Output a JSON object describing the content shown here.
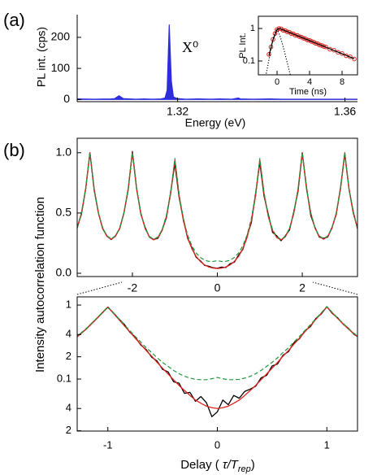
{
  "chart_data": [
    {
      "type": "area",
      "panel_label": "(a)",
      "xlabel": "Energy (eV)",
      "ylabel": "PL int. (cps)",
      "annotation": "X⁰",
      "xlim": [
        1.296,
        1.363
      ],
      "xticks": [
        1.32,
        1.36
      ],
      "ylim": [
        -7,
        273
      ],
      "yticks": [
        0,
        100,
        200
      ],
      "x": [
        1.296,
        1.3,
        1.304,
        1.305,
        1.306,
        1.307,
        1.31,
        1.312,
        1.314,
        1.316,
        1.317,
        1.3175,
        1.318,
        1.3185,
        1.319,
        1.32,
        1.322,
        1.325,
        1.328,
        1.33,
        1.333,
        1.3345,
        1.335,
        1.338,
        1.342,
        1.345,
        1.35,
        1.355,
        1.36,
        1.363
      ],
      "series": [
        {
          "color": "#2d2ddc",
          "values": [
            2,
            1,
            2,
            3,
            12,
            3,
            1,
            2,
            1,
            2,
            5,
            30,
            240,
            60,
            8,
            3,
            1,
            2,
            1,
            2,
            1,
            5,
            2,
            1,
            2,
            1,
            1,
            1,
            1,
            1
          ]
        }
      ]
    },
    {
      "type": "line",
      "log_y": true,
      "xlabel": "Time (ns)",
      "ylabel": "PL Int.",
      "xlim": [
        -2.3,
        9.9
      ],
      "xticks": [
        0,
        4,
        8
      ],
      "ylim": [
        0.0376,
        2.37
      ],
      "yticks": [
        1,
        0.1
      ],
      "series": [
        {
          "style": "markers",
          "color": "#d8261f",
          "x": [
            -1,
            -0.75,
            -0.5,
            -0.25,
            0,
            0.25,
            0.5,
            0.75,
            1,
            1.25,
            1.5,
            1.75,
            2,
            2.25,
            2.5,
            2.75,
            3,
            3.25,
            3.5,
            3.75,
            4,
            4.25,
            4.5,
            4.75,
            5,
            5.25,
            5.5,
            5.75,
            6,
            6.5,
            7,
            7.5,
            8,
            8.5,
            9,
            9.5
          ],
          "values": [
            0.16,
            0.27,
            0.46,
            0.7,
            0.93,
            1.0,
            0.97,
            0.88,
            0.86,
            0.79,
            0.77,
            0.7,
            0.68,
            0.62,
            0.61,
            0.56,
            0.54,
            0.5,
            0.48,
            0.44,
            0.43,
            0.4,
            0.38,
            0.35,
            0.34,
            0.31,
            0.3,
            0.28,
            0.27,
            0.23,
            0.215,
            0.185,
            0.17,
            0.145,
            0.135,
            0.115
          ]
        },
        {
          "style": "solid",
          "color": "#000000",
          "x": [
            -1,
            -0.5,
            0,
            0.3,
            1,
            2,
            3,
            4,
            5,
            6,
            7,
            8,
            9,
            9.5
          ],
          "values": [
            0.15,
            0.45,
            0.92,
            1.0,
            0.85,
            0.673,
            0.534,
            0.423,
            0.335,
            0.266,
            0.211,
            0.167,
            0.132,
            0.118
          ]
        },
        {
          "style": "dotted",
          "color": "#000000",
          "x": [
            -1.6,
            -1.2,
            -0.8,
            -0.4,
            0,
            0.4,
            0.8,
            1.2,
            1.6,
            2.0
          ],
          "values": [
            0.02,
            0.06,
            0.2,
            0.6,
            1.0,
            0.55,
            0.25,
            0.1,
            0.04,
            0.018
          ]
        }
      ]
    },
    {
      "type": "line",
      "panel_label": "(b)",
      "ylabel": "Intensity autocorrelation function",
      "xlim": [
        -3.3,
        3.3
      ],
      "xticks": [
        -2,
        0,
        2
      ],
      "ylim": [
        -0.027,
        1.12
      ],
      "yticks": [
        {
          "value": 0,
          "label": "0.0"
        },
        0.5,
        {
          "value": 1,
          "label": "1.0"
        }
      ],
      "x": [
        -3.3,
        -3.2,
        -3.1,
        -3.0,
        -2.9,
        -2.8,
        -2.7,
        -2.6,
        -2.5,
        -2.4,
        -2.3,
        -2.2,
        -2.1,
        -2.0,
        -1.9,
        -1.8,
        -1.7,
        -1.6,
        -1.5,
        -1.4,
        -1.3,
        -1.2,
        -1.1,
        -1.0,
        -0.9,
        -0.8,
        -0.7,
        -0.6,
        -0.5,
        -0.4,
        -0.3,
        -0.2,
        -0.1,
        0,
        0.1,
        0.2,
        0.3,
        0.4,
        0.5,
        0.6,
        0.7,
        0.8,
        0.9,
        1.0,
        1.1,
        1.2,
        1.3,
        1.4,
        1.5,
        1.6,
        1.7,
        1.8,
        1.9,
        2.0,
        2.1,
        2.2,
        2.3,
        2.4,
        2.5,
        2.6,
        2.7,
        2.8,
        2.9,
        3.0,
        3.1,
        3.2,
        3.3
      ],
      "series": [
        {
          "style": "solid",
          "color": "#000000",
          "values": [
            0.38,
            0.49,
            0.7,
            1.0,
            0.69,
            0.5,
            0.37,
            0.31,
            0.28,
            0.31,
            0.37,
            0.5,
            0.69,
            1.01,
            0.7,
            0.49,
            0.38,
            0.3,
            0.28,
            0.29,
            0.36,
            0.46,
            0.67,
            0.91,
            0.63,
            0.45,
            0.29,
            0.212,
            0.133,
            0.104,
            0.066,
            0.058,
            0.046,
            0.042,
            0.051,
            0.048,
            0.079,
            0.092,
            0.151,
            0.197,
            0.31,
            0.42,
            0.66,
            0.92,
            0.64,
            0.49,
            0.34,
            0.31,
            0.27,
            0.31,
            0.36,
            0.51,
            0.68,
            1.0,
            0.71,
            0.48,
            0.38,
            0.3,
            0.29,
            0.3,
            0.38,
            0.49,
            0.71,
            0.99,
            0.7,
            0.51,
            0.37
          ]
        },
        {
          "style": "solid",
          "color": "#e0201b",
          "values": [
            0.374,
            0.498,
            0.698,
            1.001,
            0.698,
            0.498,
            0.374,
            0.306,
            0.283,
            0.306,
            0.373,
            0.498,
            0.698,
            1.0,
            0.697,
            0.496,
            0.371,
            0.302,
            0.277,
            0.296,
            0.355,
            0.47,
            0.657,
            0.941,
            0.641,
            0.436,
            0.297,
            0.204,
            0.14,
            0.098,
            0.07,
            0.052,
            0.043,
            0.04,
            0.043,
            0.052,
            0.07,
            0.098,
            0.14,
            0.204,
            0.297,
            0.436,
            0.641,
            0.941,
            0.657,
            0.47,
            0.355,
            0.296,
            0.277,
            0.302,
            0.371,
            0.496,
            0.697,
            1.0,
            0.698,
            0.498,
            0.373,
            0.306,
            0.283,
            0.306,
            0.374,
            0.498,
            0.698,
            1.001,
            0.698,
            0.498,
            0.374
          ]
        },
        {
          "style": "dashed",
          "color": "#1a9a3a",
          "values": [
            0.378,
            0.502,
            0.702,
            1.005,
            0.702,
            0.502,
            0.378,
            0.31,
            0.287,
            0.31,
            0.377,
            0.502,
            0.702,
            1.004,
            0.7,
            0.5,
            0.375,
            0.306,
            0.282,
            0.302,
            0.363,
            0.479,
            0.667,
            0.953,
            0.656,
            0.453,
            0.317,
            0.228,
            0.168,
            0.131,
            0.109,
            0.099,
            0.098,
            0.105,
            0.098,
            0.099,
            0.109,
            0.131,
            0.168,
            0.228,
            0.317,
            0.453,
            0.656,
            0.953,
            0.667,
            0.479,
            0.363,
            0.302,
            0.282,
            0.306,
            0.375,
            0.5,
            0.7,
            1.004,
            0.702,
            0.502,
            0.377,
            0.31,
            0.287,
            0.31,
            0.378,
            0.502,
            0.702,
            1.005,
            0.702,
            0.502,
            0.378
          ]
        }
      ]
    },
    {
      "type": "line",
      "log_y": true,
      "xlabel": {
        "text": "Delay (",
        "var": "τ/T",
        "sub": "rep",
        "end": ")"
      },
      "xlim": [
        -1.28,
        1.28
      ],
      "xticks": [
        -1,
        0,
        1
      ],
      "ylim": [
        0.0198,
        1.29
      ],
      "yticks": [
        1,
        {
          "value": 0.4,
          "label": "4"
        },
        {
          "value": 0.2,
          "label": "2"
        },
        0.1,
        {
          "value": 0.04,
          "label": "4"
        },
        {
          "value": 0.02,
          "label": "2"
        }
      ],
      "x": [
        -1.3,
        -1.25,
        -1.2,
        -1.15,
        -1.1,
        -1.05,
        -1.0,
        -0.95,
        -0.9,
        -0.85,
        -0.8,
        -0.75,
        -0.7,
        -0.65,
        -0.6,
        -0.55,
        -0.5,
        -0.45,
        -0.4,
        -0.35,
        -0.3,
        -0.25,
        -0.2,
        -0.15,
        -0.1,
        -0.05,
        0,
        0.05,
        0.1,
        0.15,
        0.2,
        0.25,
        0.3,
        0.35,
        0.4,
        0.45,
        0.5,
        0.55,
        0.6,
        0.65,
        0.7,
        0.75,
        0.8,
        0.85,
        0.9,
        0.95,
        1.0,
        1.05,
        1.1,
        1.15,
        1.2,
        1.25,
        1.3
      ],
      "series": [
        {
          "style": "solid",
          "color": "#000000",
          "values": [
            0.35,
            0.41,
            0.47,
            0.56,
            0.66,
            0.79,
            0.93,
            0.79,
            0.65,
            0.55,
            0.43,
            0.37,
            0.29,
            0.25,
            0.198,
            0.175,
            0.135,
            0.125,
            0.092,
            0.088,
            0.064,
            0.066,
            0.05,
            0.058,
            0.048,
            0.031,
            0.036,
            0.052,
            0.045,
            0.06,
            0.055,
            0.068,
            0.073,
            0.08,
            0.104,
            0.112,
            0.15,
            0.16,
            0.21,
            0.235,
            0.31,
            0.35,
            0.45,
            0.51,
            0.66,
            0.76,
            0.95,
            0.77,
            0.67,
            0.55,
            0.48,
            0.4,
            0.36
          ]
        },
        {
          "style": "solid",
          "color": "#e0201b",
          "values": [
            0.355,
            0.405,
            0.47,
            0.554,
            0.657,
            0.784,
            0.941,
            0.776,
            0.641,
            0.526,
            0.436,
            0.357,
            0.297,
            0.243,
            0.204,
            0.168,
            0.14,
            0.117,
            0.098,
            0.082,
            0.07,
            0.06,
            0.052,
            0.047,
            0.043,
            0.041,
            0.04,
            0.041,
            0.043,
            0.047,
            0.052,
            0.06,
            0.07,
            0.082,
            0.098,
            0.117,
            0.14,
            0.168,
            0.204,
            0.243,
            0.297,
            0.357,
            0.436,
            0.526,
            0.641,
            0.776,
            0.941,
            0.784,
            0.657,
            0.554,
            0.47,
            0.405,
            0.355
          ]
        },
        {
          "style": "dashed",
          "color": "#1a9a3a",
          "values": [
            0.363,
            0.413,
            0.479,
            0.564,
            0.667,
            0.795,
            0.953,
            0.789,
            0.656,
            0.542,
            0.453,
            0.376,
            0.317,
            0.265,
            0.228,
            0.194,
            0.168,
            0.148,
            0.131,
            0.118,
            0.109,
            0.103,
            0.099,
            0.098,
            0.098,
            0.101,
            0.105,
            0.101,
            0.098,
            0.098,
            0.099,
            0.103,
            0.109,
            0.118,
            0.131,
            0.148,
            0.168,
            0.194,
            0.228,
            0.265,
            0.317,
            0.376,
            0.453,
            0.542,
            0.656,
            0.789,
            0.953,
            0.795,
            0.667,
            0.564,
            0.479,
            0.413,
            0.363
          ]
        }
      ]
    }
  ]
}
